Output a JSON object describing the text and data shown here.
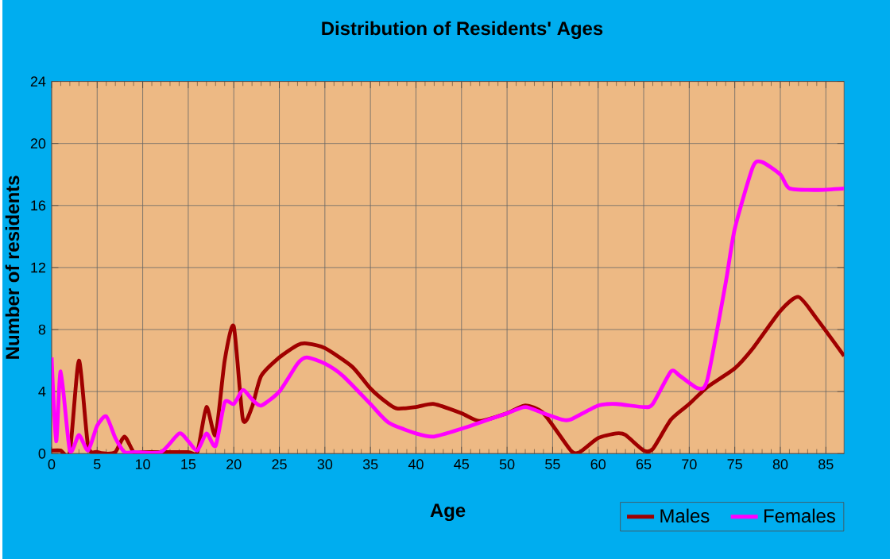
{
  "chart_data": {
    "type": "line",
    "title": "Distribution of Residents' Ages",
    "xlabel": "Age",
    "ylabel": "Number of residents",
    "xlim": [
      0,
      87
    ],
    "ylim": [
      0,
      24
    ],
    "xticks": [
      0,
      5,
      10,
      15,
      20,
      25,
      30,
      35,
      40,
      45,
      50,
      55,
      60,
      65,
      70,
      75,
      80,
      85
    ],
    "yticks": [
      0,
      4,
      8,
      12,
      16,
      20,
      24
    ],
    "grid": true,
    "legend": "bottom right",
    "line_style": "solid",
    "marker": "none",
    "series": [
      {
        "name": "Males",
        "color": "#a00000",
        "x": [
          0,
          1,
          2,
          3,
          4,
          5,
          6,
          7,
          8,
          9,
          10,
          12,
          15,
          16,
          17,
          18,
          19,
          20,
          21,
          22,
          23,
          25,
          27,
          28,
          30,
          33,
          35,
          37,
          38,
          40,
          42,
          45,
          47,
          50,
          52,
          54,
          57,
          58,
          60,
          62,
          63,
          65,
          66,
          68,
          70,
          72,
          75,
          77,
          80,
          82,
          84,
          87
        ],
        "values": [
          0.2,
          0.2,
          0.1,
          6,
          0.5,
          0.1,
          0,
          0.1,
          1.1,
          0.1,
          0.1,
          0.1,
          0.1,
          0.1,
          3,
          1.2,
          6,
          8.2,
          2.2,
          3,
          5,
          6.2,
          7,
          7.1,
          6.8,
          5.6,
          4.2,
          3.2,
          2.9,
          3,
          3.2,
          2.6,
          2.1,
          2.6,
          3.1,
          2.6,
          0.2,
          0.1,
          1,
          1.3,
          1.2,
          0.2,
          0.3,
          2.2,
          3.2,
          4.3,
          5.5,
          6.8,
          9.2,
          10.1,
          8.7,
          6.3
        ]
      },
      {
        "name": "Females",
        "color": "#ff00ff",
        "x": [
          0,
          0.5,
          1,
          2,
          3,
          4,
          5,
          6,
          7,
          8,
          9,
          12,
          14,
          15,
          16,
          17,
          18,
          19,
          20,
          21,
          22,
          23,
          25,
          27,
          28,
          30,
          32,
          35,
          37,
          40,
          42,
          45,
          48,
          50,
          52,
          54,
          56,
          57,
          60,
          62,
          65,
          66,
          68,
          69,
          71,
          72,
          74,
          75,
          77,
          78,
          80,
          81,
          84,
          87
        ],
        "values": [
          6.2,
          0.8,
          5.3,
          0.2,
          1.2,
          0.2,
          1.8,
          2.4,
          1,
          0.1,
          0.1,
          0.1,
          1.3,
          0.8,
          0.2,
          1.3,
          0.5,
          3.3,
          3.2,
          4.1,
          3.5,
          3.1,
          4,
          5.8,
          6.2,
          5.8,
          5,
          3.2,
          2,
          1.3,
          1.1,
          1.6,
          2.2,
          2.6,
          3,
          2.6,
          2.2,
          2.2,
          3.1,
          3.2,
          3,
          3.2,
          5.3,
          5,
          4.2,
          4.8,
          11,
          14.5,
          18.5,
          18.8,
          18,
          17.1,
          17,
          17.1
        ]
      }
    ]
  }
}
